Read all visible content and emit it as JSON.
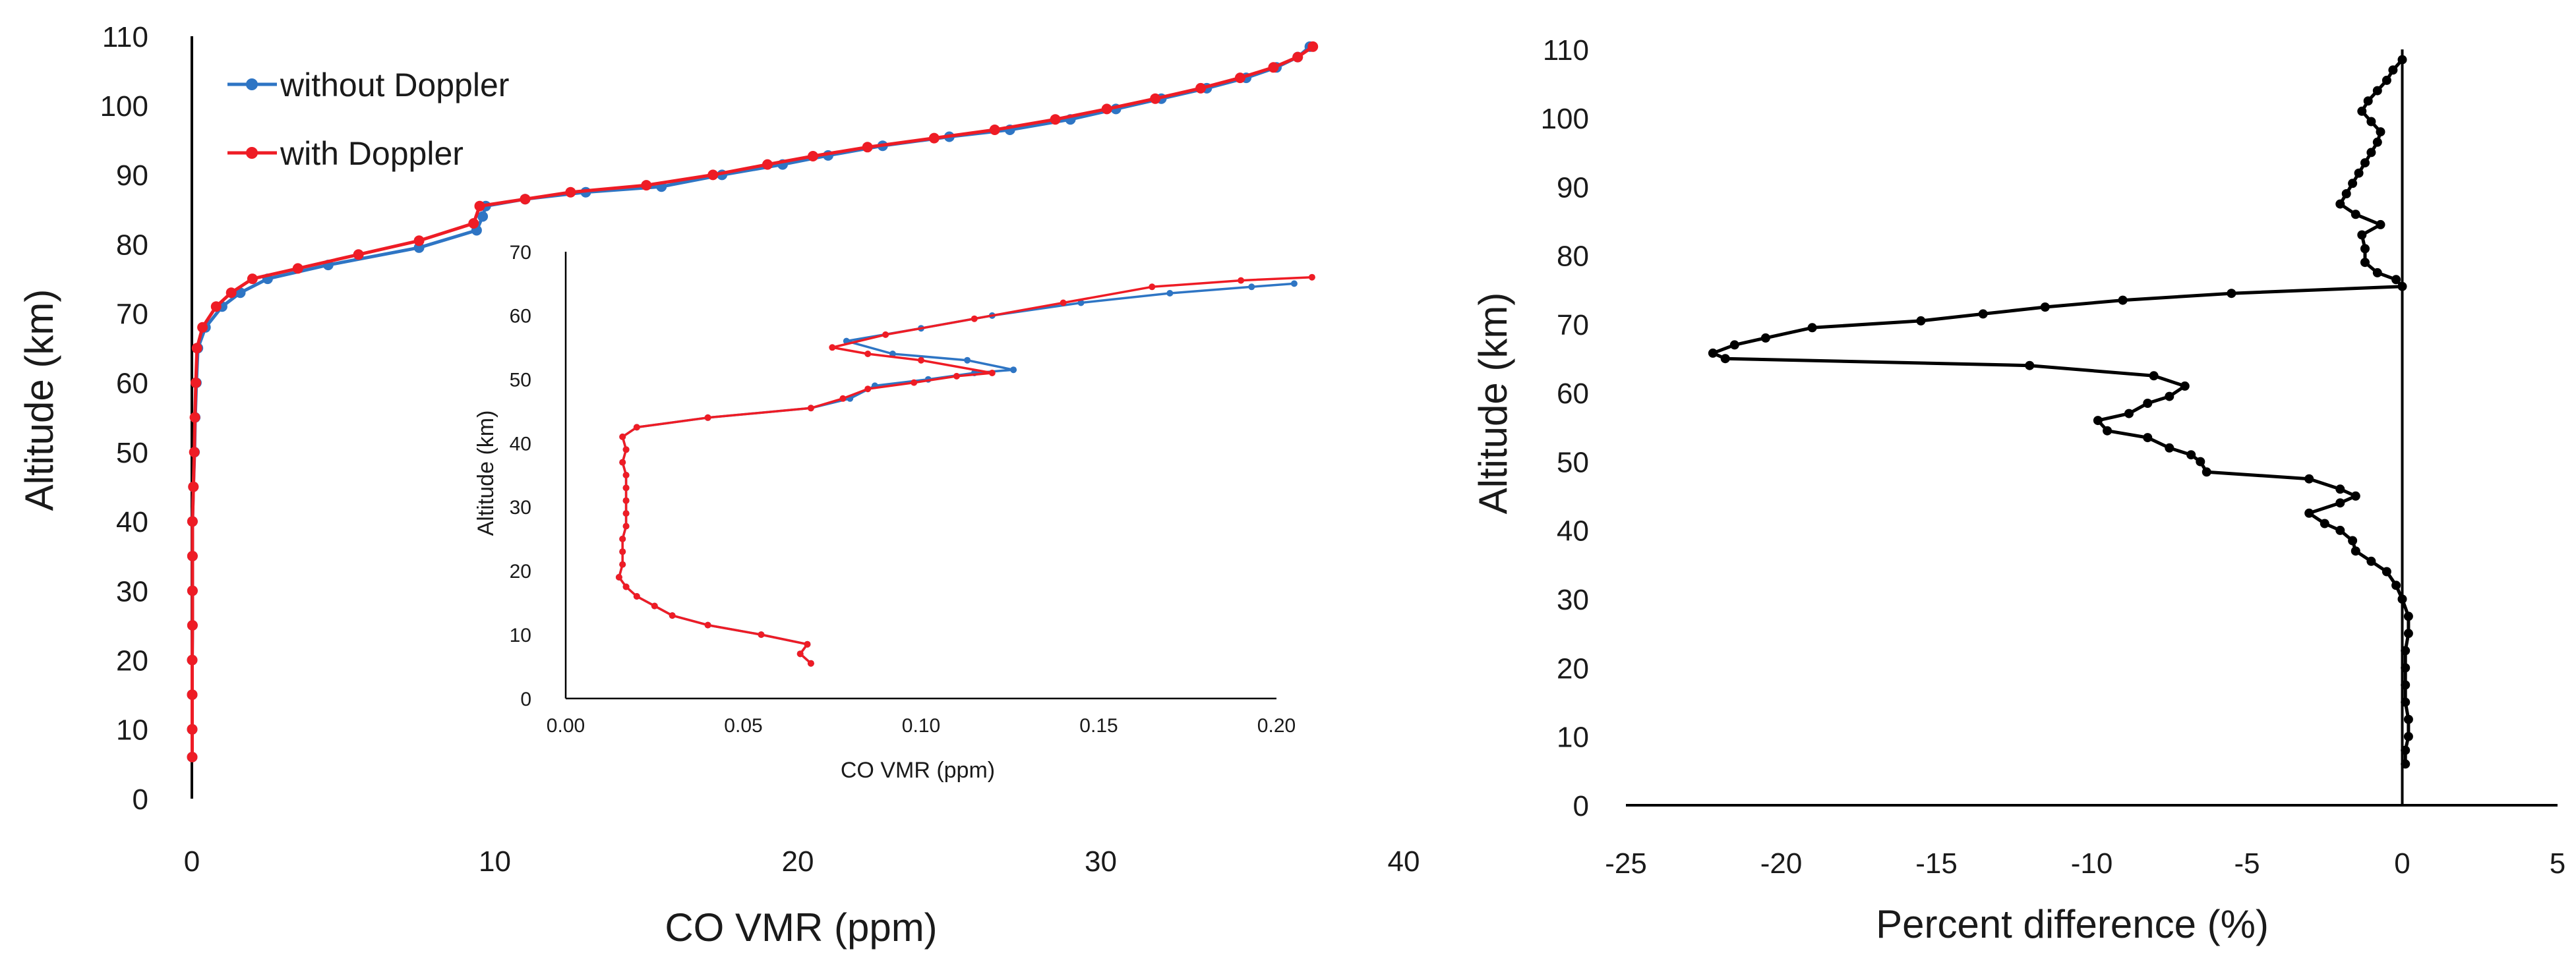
{
  "chart_data": [
    {
      "id": "main",
      "type": "line",
      "xlabel": "CO VMR (ppm)",
      "ylabel": "Altitude (km)",
      "xlim": [
        0,
        40
      ],
      "ylim": [
        0,
        110
      ],
      "xticks": [
        "0",
        "10",
        "20",
        "30",
        "40"
      ],
      "yticks": [
        "0",
        "10",
        "20",
        "30",
        "40",
        "50",
        "60",
        "70",
        "80",
        "90",
        "100",
        "110"
      ],
      "legend_position": "top-left",
      "series": [
        {
          "name": "without Doppler",
          "color": "#2e75c4",
          "points": [
            [
              0.01,
              6
            ],
            [
              0.01,
              10
            ],
            [
              0.01,
              15
            ],
            [
              0.01,
              20
            ],
            [
              0.02,
              25
            ],
            [
              0.02,
              30
            ],
            [
              0.02,
              35
            ],
            [
              0.02,
              40
            ],
            [
              0.05,
              45
            ],
            [
              0.09,
              50
            ],
            [
              0.11,
              55
            ],
            [
              0.15,
              60
            ],
            [
              0.2,
              65
            ],
            [
              0.45,
              68
            ],
            [
              1.0,
              71
            ],
            [
              1.6,
              73
            ],
            [
              2.5,
              75
            ],
            [
              4.5,
              77
            ],
            [
              7.5,
              79.5
            ],
            [
              9.4,
              82
            ],
            [
              9.6,
              84
            ],
            [
              9.7,
              85.5
            ],
            [
              11,
              86.5
            ],
            [
              13,
              87.5
            ],
            [
              15.5,
              88.3
            ],
            [
              17.5,
              90
            ],
            [
              19.5,
              91.5
            ],
            [
              21,
              92.8
            ],
            [
              22.8,
              94.2
            ],
            [
              25,
              95.5
            ],
            [
              27,
              96.5
            ],
            [
              29,
              98
            ],
            [
              30.5,
              99.5
            ],
            [
              32,
              101
            ],
            [
              33.5,
              102.5
            ],
            [
              34.8,
              104
            ],
            [
              35.8,
              105.5
            ],
            [
              36.5,
              107
            ],
            [
              36.9,
              108.5
            ]
          ]
        },
        {
          "name": "with Doppler",
          "color": "#ee1c25",
          "points": [
            [
              0.01,
              6
            ],
            [
              0.01,
              10
            ],
            [
              0.01,
              15
            ],
            [
              0.01,
              20
            ],
            [
              0.02,
              25
            ],
            [
              0.02,
              30
            ],
            [
              0.02,
              35
            ],
            [
              0.02,
              40
            ],
            [
              0.05,
              45
            ],
            [
              0.08,
              50
            ],
            [
              0.1,
              55
            ],
            [
              0.13,
              60
            ],
            [
              0.17,
              65
            ],
            [
              0.35,
              68
            ],
            [
              0.8,
              71
            ],
            [
              1.3,
              73
            ],
            [
              2.0,
              75
            ],
            [
              3.5,
              76.5
            ],
            [
              5.5,
              78.5
            ],
            [
              7.5,
              80.5
            ],
            [
              9.3,
              83
            ],
            [
              9.5,
              85.5
            ],
            [
              11,
              86.5
            ],
            [
              12.5,
              87.5
            ],
            [
              15,
              88.5
            ],
            [
              17.2,
              90
            ],
            [
              19,
              91.5
            ],
            [
              20.5,
              92.7
            ],
            [
              22.3,
              94
            ],
            [
              24.5,
              95.3
            ],
            [
              26.5,
              96.5
            ],
            [
              28.5,
              98
            ],
            [
              30.2,
              99.5
            ],
            [
              31.8,
              101
            ],
            [
              33.3,
              102.5
            ],
            [
              34.6,
              104
            ],
            [
              35.7,
              105.5
            ],
            [
              36.5,
              107
            ],
            [
              37,
              108.5
            ]
          ]
        }
      ]
    },
    {
      "id": "inset",
      "type": "line",
      "xlabel": "CO VMR (ppm)",
      "ylabel": "Altitude (km)",
      "xlim": [
        0,
        0.2
      ],
      "ylim": [
        0,
        70
      ],
      "xticks": [
        "0.00",
        "0.05",
        "0.10",
        "0.15",
        "0.20"
      ],
      "yticks": [
        "0",
        "10",
        "20",
        "30",
        "40",
        "50",
        "60",
        "70"
      ],
      "series": [
        {
          "name": "without Doppler",
          "color": "#2e75c4",
          "points": [
            [
              0.069,
              5.5
            ],
            [
              0.066,
              7
            ],
            [
              0.068,
              8.5
            ],
            [
              0.055,
              10
            ],
            [
              0.04,
              11.5
            ],
            [
              0.03,
              13
            ],
            [
              0.025,
              14.5
            ],
            [
              0.02,
              16
            ],
            [
              0.017,
              17.5
            ],
            [
              0.015,
              19
            ],
            [
              0.016,
              21
            ],
            [
              0.016,
              23
            ],
            [
              0.016,
              25
            ],
            [
              0.017,
              27
            ],
            [
              0.017,
              29
            ],
            [
              0.017,
              31
            ],
            [
              0.017,
              33
            ],
            [
              0.017,
              35
            ],
            [
              0.016,
              37
            ],
            [
              0.017,
              39
            ],
            [
              0.016,
              41
            ],
            [
              0.02,
              42.5
            ],
            [
              0.04,
              44
            ],
            [
              0.069,
              45.5
            ],
            [
              0.08,
              47
            ],
            [
              0.087,
              49
            ],
            [
              0.102,
              50
            ],
            [
              0.115,
              51
            ],
            [
              0.126,
              51.5
            ],
            [
              0.113,
              53
            ],
            [
              0.092,
              54
            ],
            [
              0.079,
              56
            ],
            [
              0.1,
              58
            ],
            [
              0.12,
              60
            ],
            [
              0.145,
              62
            ],
            [
              0.17,
              63.5
            ],
            [
              0.193,
              64.5
            ],
            [
              0.205,
              65
            ]
          ]
        },
        {
          "name": "with Doppler",
          "color": "#ee1c25",
          "points": [
            [
              0.069,
              5.5
            ],
            [
              0.066,
              7
            ],
            [
              0.068,
              8.5
            ],
            [
              0.055,
              10
            ],
            [
              0.04,
              11.5
            ],
            [
              0.03,
              13
            ],
            [
              0.025,
              14.5
            ],
            [
              0.02,
              16
            ],
            [
              0.017,
              17.5
            ],
            [
              0.015,
              19
            ],
            [
              0.016,
              21
            ],
            [
              0.016,
              23
            ],
            [
              0.016,
              25
            ],
            [
              0.017,
              27
            ],
            [
              0.017,
              29
            ],
            [
              0.017,
              31
            ],
            [
              0.017,
              33
            ],
            [
              0.017,
              35
            ],
            [
              0.016,
              37
            ],
            [
              0.017,
              39
            ],
            [
              0.016,
              41
            ],
            [
              0.02,
              42.5
            ],
            [
              0.04,
              44
            ],
            [
              0.069,
              45.5
            ],
            [
              0.078,
              47
            ],
            [
              0.085,
              48.5
            ],
            [
              0.098,
              49.5
            ],
            [
              0.11,
              50.5
            ],
            [
              0.12,
              51
            ],
            [
              0.1,
              53
            ],
            [
              0.085,
              54
            ],
            [
              0.075,
              55
            ],
            [
              0.09,
              57
            ],
            [
              0.115,
              59.5
            ],
            [
              0.14,
              62
            ],
            [
              0.165,
              64.5
            ],
            [
              0.19,
              65.5
            ],
            [
              0.21,
              66
            ]
          ]
        }
      ]
    },
    {
      "id": "diff",
      "type": "line",
      "xlabel": "Percent difference (%)",
      "ylabel": "Altitude (km)",
      "xlim": [
        -25,
        5
      ],
      "ylim": [
        0,
        110
      ],
      "xticks": [
        "-25",
        "-20",
        "-15",
        "-10",
        "-5",
        "0",
        "5"
      ],
      "yticks": [
        "0",
        "10",
        "20",
        "30",
        "40",
        "50",
        "60",
        "70",
        "80",
        "90",
        "100",
        "110"
      ],
      "series": [
        {
          "name": "Percent difference",
          "color": "#000000",
          "points": [
            [
              0.1,
              6
            ],
            [
              0.1,
              8
            ],
            [
              0.2,
              10
            ],
            [
              0.2,
              12.5
            ],
            [
              0.1,
              15
            ],
            [
              0.1,
              17.5
            ],
            [
              0.1,
              20
            ],
            [
              0.1,
              22.5
            ],
            [
              0.2,
              25
            ],
            [
              0.2,
              27.5
            ],
            [
              0,
              30
            ],
            [
              -0.2,
              32
            ],
            [
              -0.5,
              34
            ],
            [
              -1,
              35.5
            ],
            [
              -1.5,
              37
            ],
            [
              -1.6,
              38.5
            ],
            [
              -2,
              40
            ],
            [
              -2.5,
              41
            ],
            [
              -3,
              42.5
            ],
            [
              -2,
              44
            ],
            [
              -1.5,
              45
            ],
            [
              -2,
              46
            ],
            [
              -3,
              47.5
            ],
            [
              -6.3,
              48.5
            ],
            [
              -6.5,
              50
            ],
            [
              -6.8,
              51
            ],
            [
              -7.5,
              52
            ],
            [
              -8.2,
              53.5
            ],
            [
              -9.5,
              54.5
            ],
            [
              -9.8,
              56
            ],
            [
              -8.8,
              57
            ],
            [
              -8.2,
              58.5
            ],
            [
              -7.5,
              59.5
            ],
            [
              -7,
              61
            ],
            [
              -8,
              62.5
            ],
            [
              -12,
              64
            ],
            [
              -21.8,
              65
            ],
            [
              -22.2,
              65.8
            ],
            [
              -21.5,
              67
            ],
            [
              -20.5,
              68
            ],
            [
              -19,
              69.5
            ],
            [
              -15.5,
              70.5
            ],
            [
              -13.5,
              71.5
            ],
            [
              -11.5,
              72.5
            ],
            [
              -9,
              73.5
            ],
            [
              -5.5,
              74.5
            ],
            [
              0,
              75.5
            ],
            [
              -0.2,
              76.5
            ],
            [
              -0.8,
              77.5
            ],
            [
              -1.2,
              79
            ],
            [
              -1.2,
              81
            ],
            [
              -1.3,
              83
            ],
            [
              -0.7,
              84.5
            ],
            [
              -1.5,
              86
            ],
            [
              -2,
              87.5
            ],
            [
              -1.8,
              89
            ],
            [
              -1.6,
              90.5
            ],
            [
              -1.4,
              92
            ],
            [
              -1.2,
              93.5
            ],
            [
              -1,
              95
            ],
            [
              -0.8,
              96.5
            ],
            [
              -0.7,
              98
            ],
            [
              -1,
              99.5
            ],
            [
              -1.3,
              101
            ],
            [
              -1.1,
              102.5
            ],
            [
              -0.8,
              104
            ],
            [
              -0.5,
              105.5
            ],
            [
              -0.3,
              107
            ],
            [
              0,
              108.5
            ]
          ]
        }
      ]
    }
  ]
}
